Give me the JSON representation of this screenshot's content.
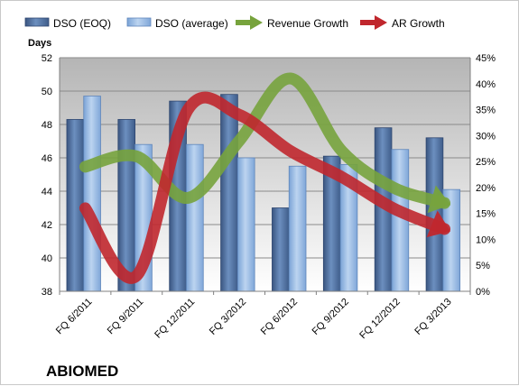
{
  "chart_data": {
    "type": "bar",
    "ylabel": "Days",
    "company_label": "ABIOMED",
    "categories": [
      "FQ 6/2011",
      "FQ 9/2011",
      "FQ 12/2011",
      "FQ 3/2012",
      "FQ 6/2012",
      "FQ 9/2012",
      "FQ 12/2012",
      "FQ 3/2013"
    ],
    "ylim": [
      38,
      52
    ],
    "y_ticks": [
      38,
      40,
      42,
      44,
      46,
      48,
      50,
      52
    ],
    "y2lim": [
      0,
      45
    ],
    "y2_ticks": [
      "0%",
      "5%",
      "10%",
      "15%",
      "20%",
      "25%",
      "30%",
      "35%",
      "40%",
      "45%"
    ],
    "grid": true,
    "legend_position": "top",
    "series": [
      {
        "name": "DSO (EOQ)",
        "kind": "bar",
        "axis": "left",
        "color": "#4a6b9a",
        "values": [
          48.3,
          48.3,
          49.4,
          49.8,
          43.0,
          46.1,
          47.8,
          47.2
        ]
      },
      {
        "name": "DSO (average)",
        "kind": "bar",
        "axis": "left",
        "color": "#8db3e2",
        "values": [
          49.7,
          46.8,
          46.8,
          46.0,
          45.5,
          45.6,
          46.5,
          44.1
        ]
      },
      {
        "name": "Revenue Growth",
        "kind": "line",
        "axis": "right",
        "color": "#77a33d",
        "values": [
          24,
          26,
          18,
          29,
          41,
          27,
          20,
          17
        ]
      },
      {
        "name": "AR Growth",
        "kind": "line",
        "axis": "right",
        "color": "#c0272d",
        "values": [
          16,
          3,
          35,
          34,
          27,
          22,
          16,
          12
        ]
      }
    ]
  }
}
